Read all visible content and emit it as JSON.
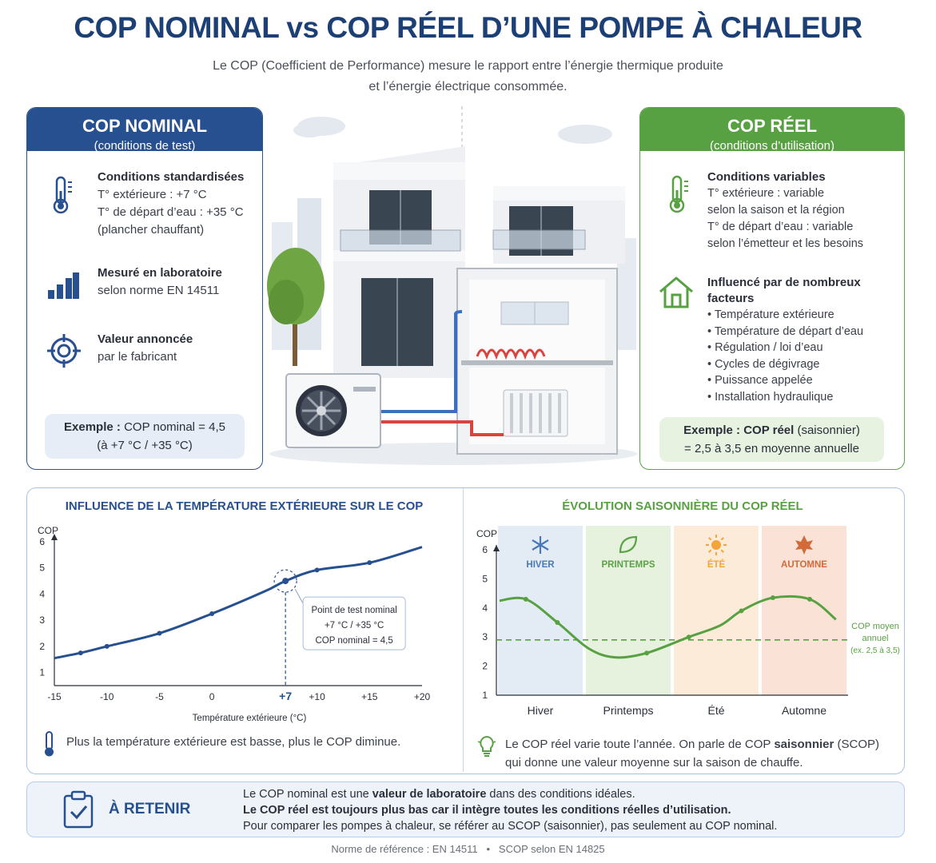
{
  "header": {
    "title": "COP NOMINAL vs COP RÉEL D’UNE POMPE À CHALEUR",
    "intro_line1": "Le COP (Coefficient de Performance) mesure le rapport entre l’énergie thermique produite",
    "intro_line2": "et l’énergie électrique consommée."
  },
  "nominal": {
    "title": "COP NOMINAL",
    "subtitle": "(conditions de test)",
    "items": [
      {
        "title": "Conditions standardisées",
        "lines": [
          "T° extérieure : +7 °C",
          "T° de départ d’eau : +35 °C",
          "(plancher chauffant)"
        ],
        "icon": "thermometer-icon"
      },
      {
        "title": "Mesuré en laboratoire",
        "lines": [
          "selon norme EN 14511"
        ],
        "icon": "bar-chart-icon"
      },
      {
        "title": "Valeur annoncée",
        "lines": [
          "par le fabricant"
        ],
        "icon": "target-icon"
      }
    ],
    "example_label": "Exemple :",
    "example_value": "COP nominal = 4,5",
    "example_line2": "(à +7 °C / +35 °C)"
  },
  "real": {
    "title": "COP RÉEL",
    "subtitle": "(conditions d’utilisation)",
    "conditions_title": "Conditions variables",
    "conditions_lines": [
      "T° extérieure : variable",
      "selon la saison et la région",
      "T° de départ d’eau : variable",
      "selon l’émetteur et les besoins"
    ],
    "factors_title_1": "Influencé par de nombreux",
    "factors_title_2": "facteurs",
    "factors": [
      "Température extérieure",
      "Température de départ d’eau",
      "Régulation / loi d’eau",
      "Cycles de dégivrage",
      "Puissance appelée",
      "Installation hydraulique"
    ],
    "example_label": "Exemple :",
    "example_value": "COP réel",
    "example_suffix": "(saisonnier)",
    "example_line2": "= 2,5 à 3,5 en moyenne annuelle"
  },
  "colors": {
    "nominal": "#26508f",
    "real": "#58a142",
    "title": "#1c3f75"
  },
  "chart_data": [
    {
      "type": "line",
      "title": "INFLUENCE DE LA TEMPÉRATURE EXTÉRIEURE SUR LE COP",
      "xlabel": "Température extérieure (°C)",
      "ylabel": "COP",
      "xlim": [
        -15,
        20
      ],
      "ylim": [
        0.5,
        6
      ],
      "xticks": [
        "-15",
        "-10",
        "-5",
        "0",
        "+7",
        "+10",
        "+15",
        "+20"
      ],
      "xtick_values": [
        -15,
        -10,
        -5,
        0,
        7,
        10,
        15,
        20
      ],
      "yticks": [
        1,
        2,
        3,
        4,
        5,
        6
      ],
      "x": [
        -15,
        -12.5,
        -10,
        -5,
        0,
        5,
        7,
        10,
        15,
        20
      ],
      "y": [
        1.55,
        1.75,
        2.0,
        2.5,
        3.25,
        4.1,
        4.5,
        4.92,
        5.2,
        5.8
      ],
      "marker_x": [
        -12.5,
        -10,
        -5,
        0,
        7,
        10,
        15
      ],
      "annotation": {
        "x": 7,
        "y": 4.5,
        "lines": [
          "Point de test nominal",
          "+7 °C / +35 °C",
          "COP nominal = 4,5"
        ]
      },
      "caption": "Plus la température extérieure est basse, plus le COP diminue."
    },
    {
      "type": "line",
      "title": "ÉVOLUTION SAISONNIÈRE DU COP RÉEL",
      "ylabel": "COP",
      "ylim": [
        1,
        6
      ],
      "yticks": [
        1,
        2,
        3,
        4,
        5,
        6
      ],
      "categories": [
        "Hiver",
        "Printemps",
        "Été",
        "Automne"
      ],
      "seasons": [
        {
          "name": "HIVER",
          "color": "#e3ebf5",
          "icon_color": "#4a79b8",
          "icon": "snowflake-icon"
        },
        {
          "name": "PRINTEMPS",
          "color": "#e6f1de",
          "icon_color": "#5aa347",
          "icon": "leaf-icon"
        },
        {
          "name": "ÉTÉ",
          "color": "#fcebd9",
          "icon_color": "#f3a53a",
          "icon": "sun-icon"
        },
        {
          "name": "AUTOMNE",
          "color": "#fbe2d6",
          "icon_color": "#d26a3a",
          "icon": "maple-leaf-icon"
        }
      ],
      "x": [
        0,
        0.25,
        0.55,
        0.85,
        1.1,
        1.4,
        1.8,
        2.1,
        2.3,
        2.6,
        2.95,
        3.2
      ],
      "y": [
        4.25,
        4.3,
        3.5,
        2.6,
        2.3,
        2.45,
        3.0,
        3.4,
        3.9,
        4.35,
        4.3,
        3.6
      ],
      "marker_x": [
        0.25,
        0.55,
        1.4,
        1.8,
        2.3,
        2.6,
        2.95
      ],
      "average": 2.9,
      "average_label": [
        "COP moyen",
        "annuel",
        "(ex. 2,5 à 3,5)"
      ],
      "caption_line1": "Le COP réel varie toute l’année. On parle de COP",
      "caption_bold": "saisonnier",
      "caption_suffix": "(SCOP)",
      "caption_line2": "qui donne une valeur moyenne sur la saison de chauffe."
    }
  ],
  "retain": {
    "title": "À RETENIR",
    "line1_a": "Le COP nominal est une",
    "line1_b": "valeur de laboratoire",
    "line1_c": "dans des conditions idéales.",
    "line2": "Le COP réel est toujours plus bas car il intègre toutes les conditions réelles d’utilisation.",
    "line3": "Pour comparer les pompes à chaleur, se référer au SCOP (saisonnier), pas seulement au COP nominal."
  },
  "footer": {
    "left": "Norme de référence : EN 14511",
    "sep": "•",
    "right": "SCOP selon EN 14825"
  }
}
